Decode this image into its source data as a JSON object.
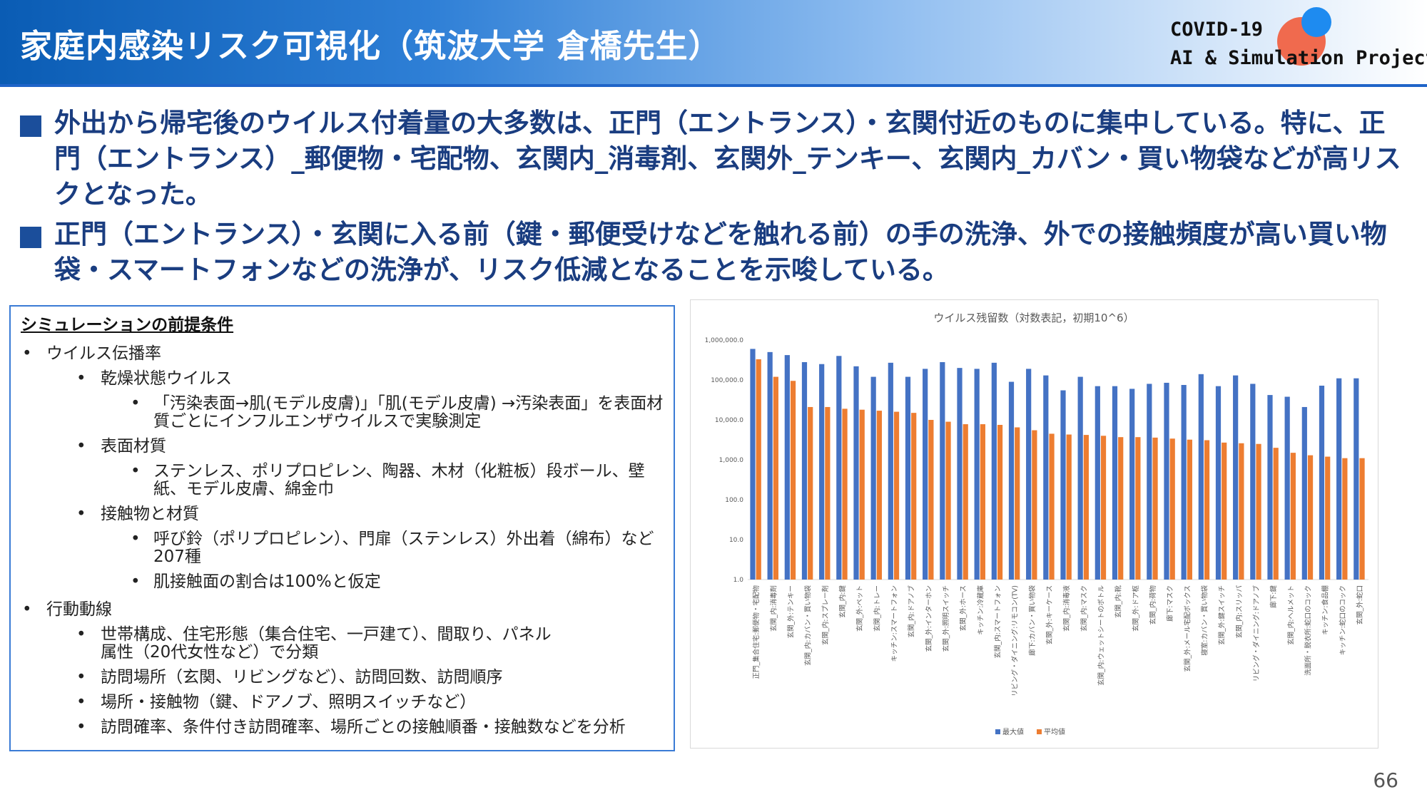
{
  "header": {
    "title": "家庭内感染リスク可視化（筑波大学 倉橋先生）",
    "logo_line1": "COVID-19",
    "logo_line2": "AI & Simulation Project"
  },
  "bullets": [
    "外出から帰宅後のウイルス付着量の大多数は、正門（エントランス）・玄関付近のものに集中している。特に、正門（エントランス）_郵便物・宅配物、玄関内_消毒剤、玄関外_テンキー、玄関内_カバン・買い物袋などが高リスクとなった。",
    "正門（エントランス）・玄関に入る前（鍵・郵便受けなどを触れる前）の手の洗浄、外での接触頻度が高い買い物袋・スマートフォンなどの洗浄が、リスク低減となることを示唆している。"
  ],
  "conditions": {
    "title": "シミュレーションの前提条件",
    "bullet_l1": "•",
    "bullet_l2": "•",
    "bullet_l3": "•",
    "items": [
      "ウイルス伝播率",
      "乾燥状態ウイルス",
      "「汚染表面→肌(モデル皮膚)」「肌(モデル皮膚) →汚染表面」を表面材質ごとにインフルエンザウイルスで実験測定",
      "表面材質",
      "ステンレス、ポリプロピレン、陶器、木材（化粧板）段ボール、壁紙、モデル皮膚、綿金巾",
      "接触物と材質",
      "呼び鈴（ポリプロピレン）、門扉（ステンレス）外出着（綿布）など207種",
      "肌接触面の割合は100%と仮定",
      "行動動線",
      "世帯構成、住宅形態（集合住宅、一戸建て）、間取り、パネル属性（20代女性など）で分類",
      "訪問場所（玄関、リビングなど）、訪問回数、訪問順序",
      "場所・接触物（鍵、ドアノブ、照明スイッチなど）",
      "訪問確率、条件付き訪問確率、場所ごとの接触順番・接触数などを分析"
    ]
  },
  "chart_data": {
    "type": "bar",
    "title": "ウイルス残留数（対数表記，初期10^6）",
    "yscale": "log",
    "ylim": [
      1,
      1000000
    ],
    "yticks": [
      "1,000,000.0",
      "100,000.0",
      "10,000.0",
      "1,000.0",
      "100.0",
      "10.0",
      "1.0"
    ],
    "grid": false,
    "legend_position": "bottom",
    "categories": [
      "正門_集合住宅:郵便物・宅配物",
      "玄関_内:消毒剤",
      "玄関_外:テンキー",
      "玄関_内:カバン・買い物袋",
      "玄関_内:スプレー剤",
      "玄関_内:鍵",
      "玄関_外:ペット",
      "玄関_内:トレー",
      "キッチン:スマートフォン",
      "玄関_内:ドアノブ",
      "玄関_外:インターホン",
      "玄関_外:照明スイッチ",
      "玄関_外:ホース",
      "キッチン:冷蔵庫",
      "玄関_内:スマートフォン",
      "リビング・ダイニング:リモコン(TV)",
      "廊下:カバン・買い物袋",
      "玄関_外:キーケース",
      "玄関_内:消毒液",
      "玄関_内:マスク",
      "玄関_内:ウェットシートのボトル",
      "玄関_内:靴",
      "玄関_外:ドア枢",
      "玄関_内:荷物",
      "廊下:マスク",
      "玄関_外:メール宅配ボックス",
      "寝室:カバン・買い物袋",
      "玄関_外:鍵スイッチ",
      "玄関_内:スリッパ",
      "リビング・ダイニング:ドアノブ",
      "廊下:鍵",
      "玄関_内:ヘルメット",
      "洗面所・脱衣所:蛇口のコック",
      "キッチン:食品棚",
      "キッチン:蛇口のコック",
      "玄関_外:蛇口"
    ],
    "series": [
      {
        "name": "最大値",
        "color": "#4472c4",
        "values": [
          600000,
          500000,
          420000,
          280000,
          250000,
          400000,
          220000,
          120000,
          270000,
          120000,
          190000,
          280000,
          200000,
          190000,
          270000,
          90000,
          190000,
          130000,
          55000,
          120000,
          70000,
          70000,
          60000,
          80000,
          85000,
          75000,
          140000,
          70000,
          130000,
          80000,
          42000,
          38000,
          21000,
          72000,
          110000,
          110000
        ]
      },
      {
        "name": "平均値",
        "color": "#ed7d31",
        "values": [
          330000,
          120000,
          95000,
          21000,
          21000,
          19000,
          18000,
          17000,
          16000,
          15000,
          10000,
          9000,
          7800,
          7800,
          7500,
          6500,
          5500,
          4500,
          4300,
          4200,
          4000,
          3700,
          3700,
          3600,
          3400,
          3200,
          3100,
          2700,
          2600,
          2500,
          2000,
          1500,
          1300,
          1200,
          1100,
          1100
        ]
      }
    ]
  },
  "page_number": "66"
}
